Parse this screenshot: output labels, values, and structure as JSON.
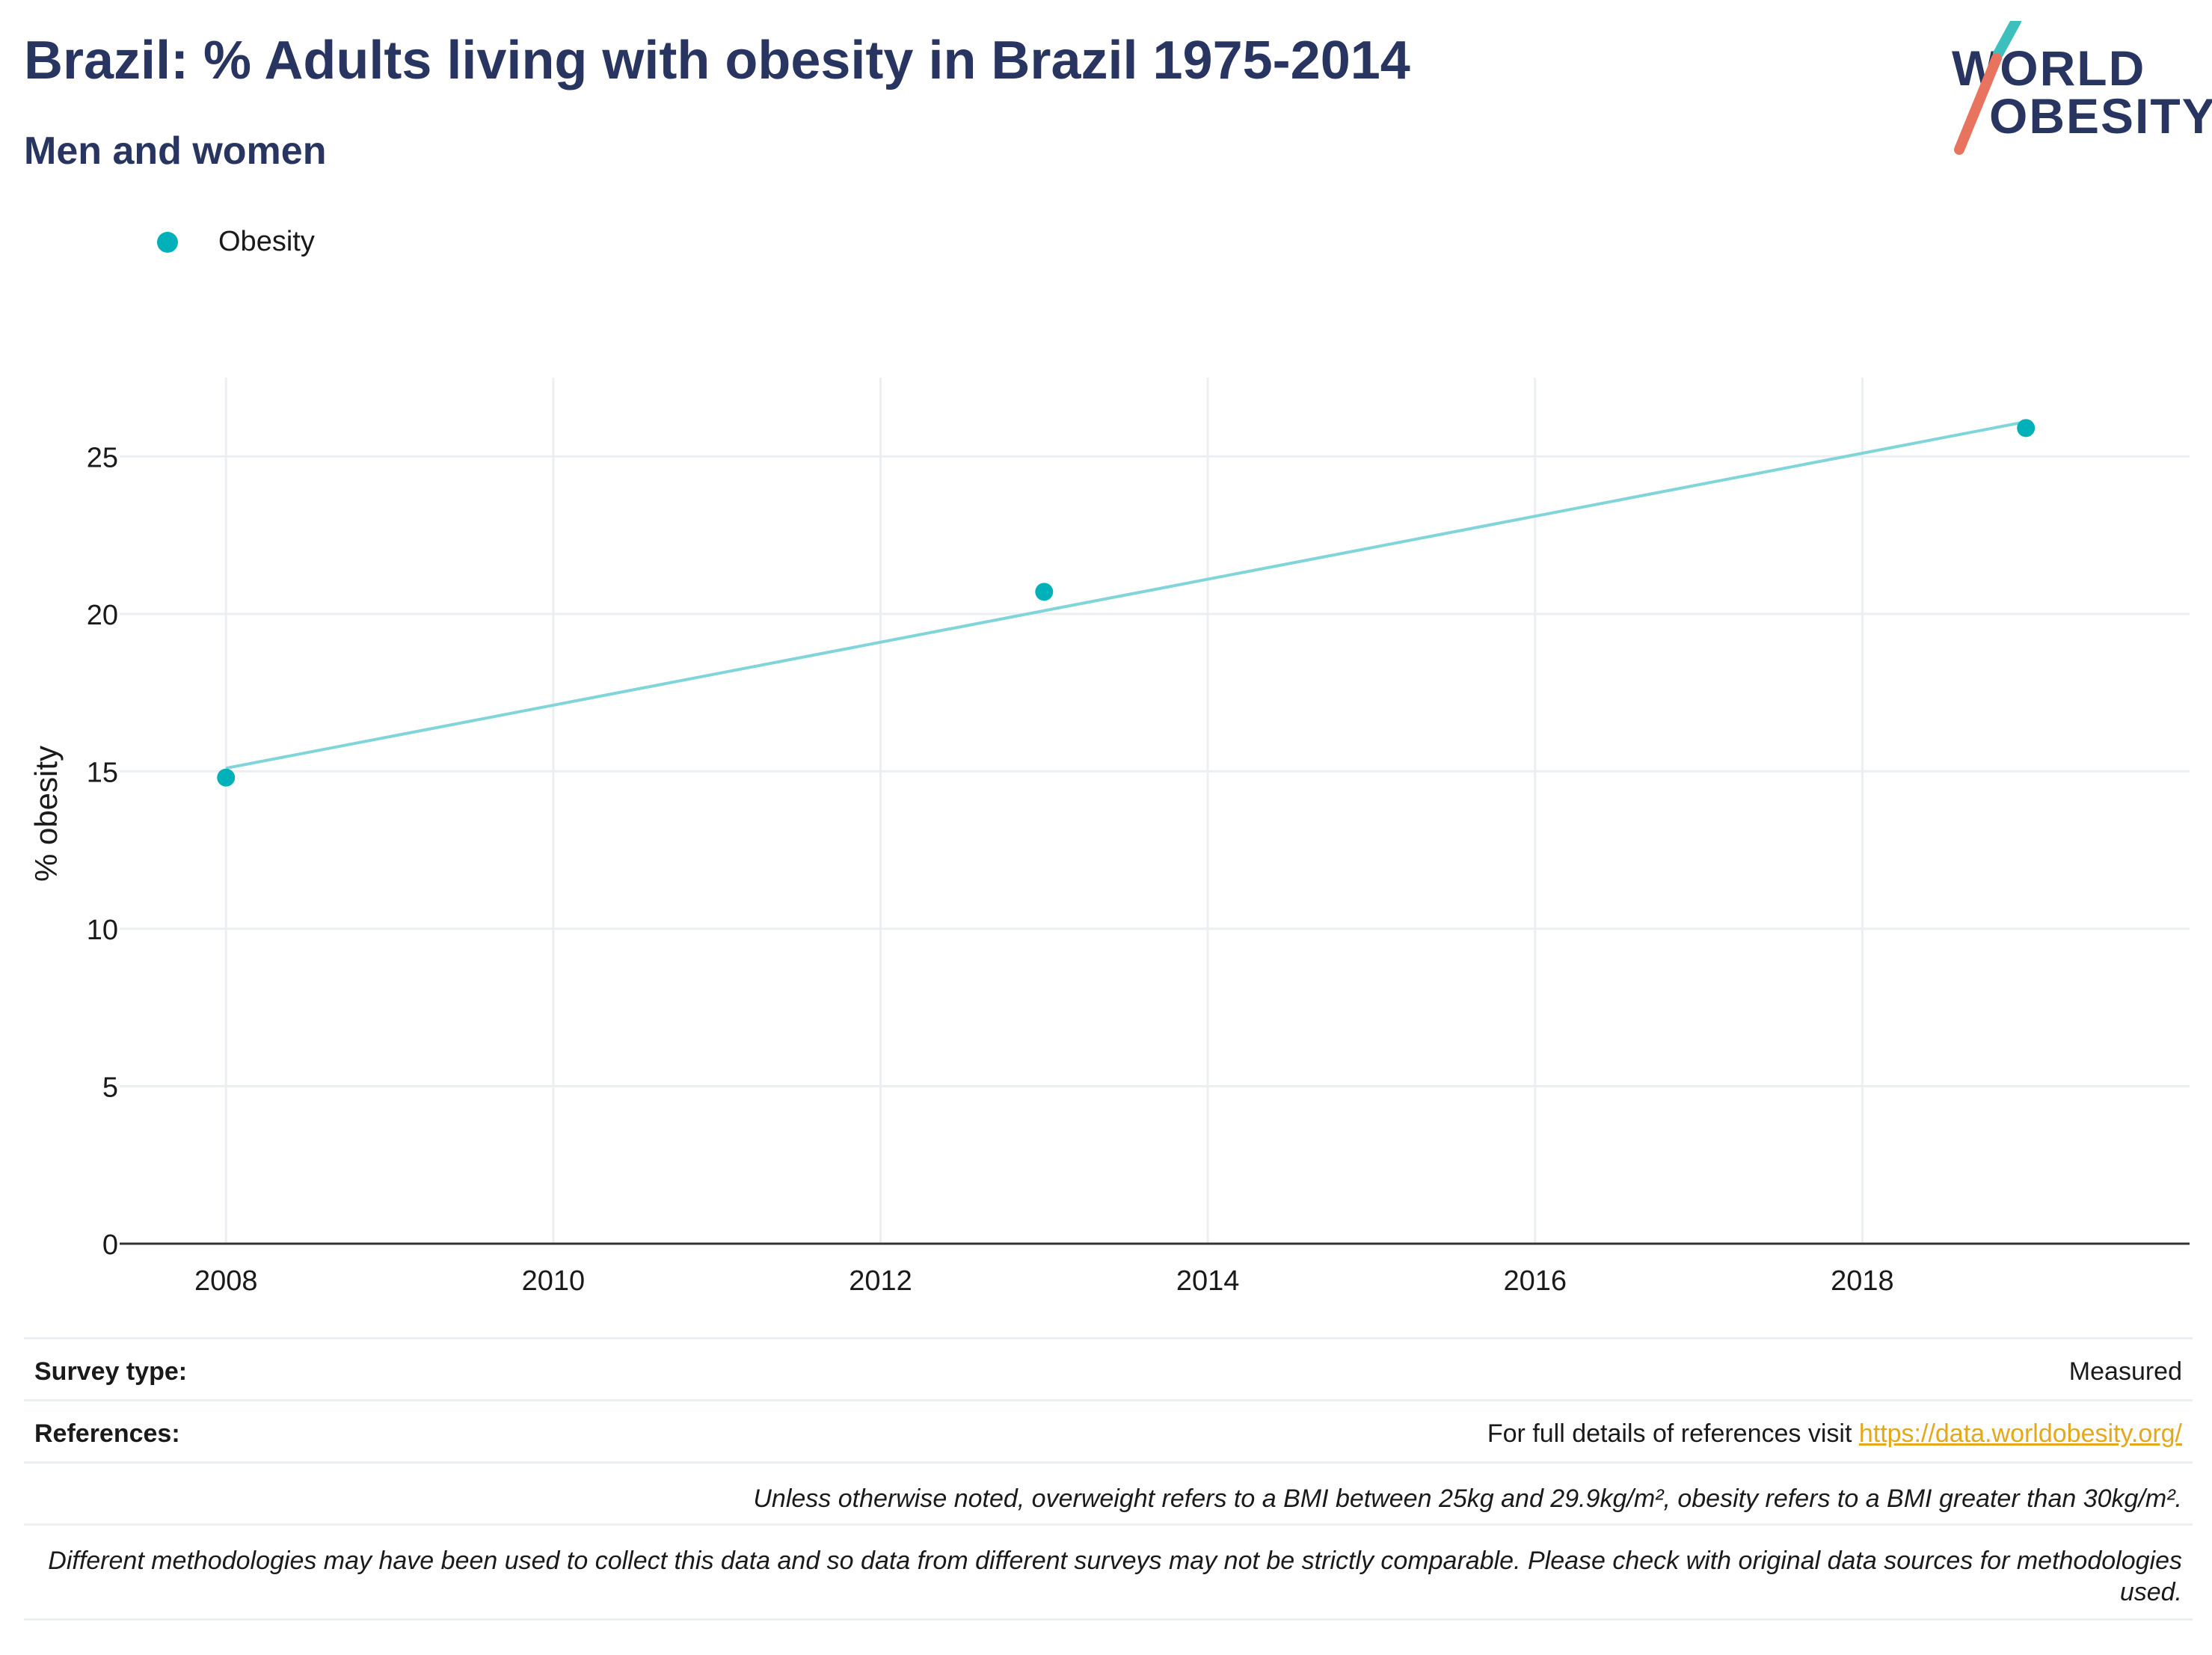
{
  "header": {
    "title": "Brazil: % Adults living with obesity in Brazil 1975-2014",
    "subtitle": "Men and women",
    "logo_line1": "WORLD",
    "logo_line2": "OBESITY"
  },
  "legend": {
    "label": "Obesity",
    "color": "#00b1b9"
  },
  "colors": {
    "marker": "#00b1b9",
    "trendline": "#7fd5d9",
    "grid": "#eceff2",
    "axis": "#333333"
  },
  "chart_data": {
    "type": "scatter",
    "series": [
      {
        "name": "Obesity",
        "x": [
          2008,
          2013,
          2019
        ],
        "values": [
          14.8,
          20.7,
          25.9
        ]
      }
    ],
    "trendline": {
      "x": [
        2008,
        2019
      ],
      "values": [
        15.1,
        26.1
      ]
    },
    "ylabel": "% obesity",
    "xlabel": "",
    "xlim": [
      2007.35,
      2020.0
    ],
    "ylim": [
      0,
      27.5
    ],
    "x_ticks": [
      2008,
      2010,
      2012,
      2014,
      2016,
      2018
    ],
    "y_ticks": [
      0,
      5,
      10,
      15,
      20,
      25
    ],
    "grid": true
  },
  "footer": {
    "survey_type_label": "Survey type:",
    "survey_type_value": "Measured",
    "references_label": "References:",
    "references_text": "For full details of references visit ",
    "references_link": "https://data.worldobesity.org/",
    "note_bmi": "Unless otherwise noted, overweight refers to a BMI between 25kg and 29.9kg/m², obesity refers to a BMI greater than 30kg/m².",
    "note_methods": "Different methodologies may have been used to collect this data and so data from different surveys may not be strictly comparable. Please check with original data sources for methodologies used."
  }
}
